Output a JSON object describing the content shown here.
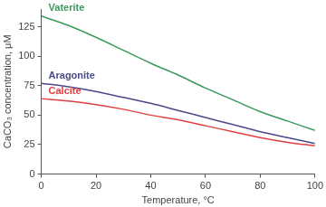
{
  "chart_data": {
    "type": "line",
    "x_label": "Temperature, °C",
    "y_label": "CaCO₃ concentration, μM",
    "x": [
      0,
      10,
      20,
      30,
      40,
      50,
      60,
      70,
      80,
      90,
      100
    ],
    "series": [
      {
        "name": "Vaterite",
        "color": "#3a9a5c",
        "values": [
          134,
          126,
          116,
          105,
          94,
          84,
          73,
          63,
          53,
          45,
          37
        ]
      },
      {
        "name": "Aragonite",
        "color": "#4a4a8a",
        "values": [
          77,
          74,
          70,
          65,
          60,
          54,
          48,
          42,
          36,
          31,
          26
        ]
      },
      {
        "name": "Calcite",
        "color": "#e04040",
        "values": [
          64,
          62,
          59,
          55,
          50,
          46,
          41,
          36,
          31,
          27,
          24
        ]
      }
    ],
    "xlim": [
      0,
      100
    ],
    "xticks": [
      0,
      20,
      40,
      60,
      80,
      100
    ],
    "ylim": [
      0,
      140
    ],
    "yticks": [
      0,
      25,
      50,
      75,
      100,
      125
    ],
    "grid": false
  }
}
